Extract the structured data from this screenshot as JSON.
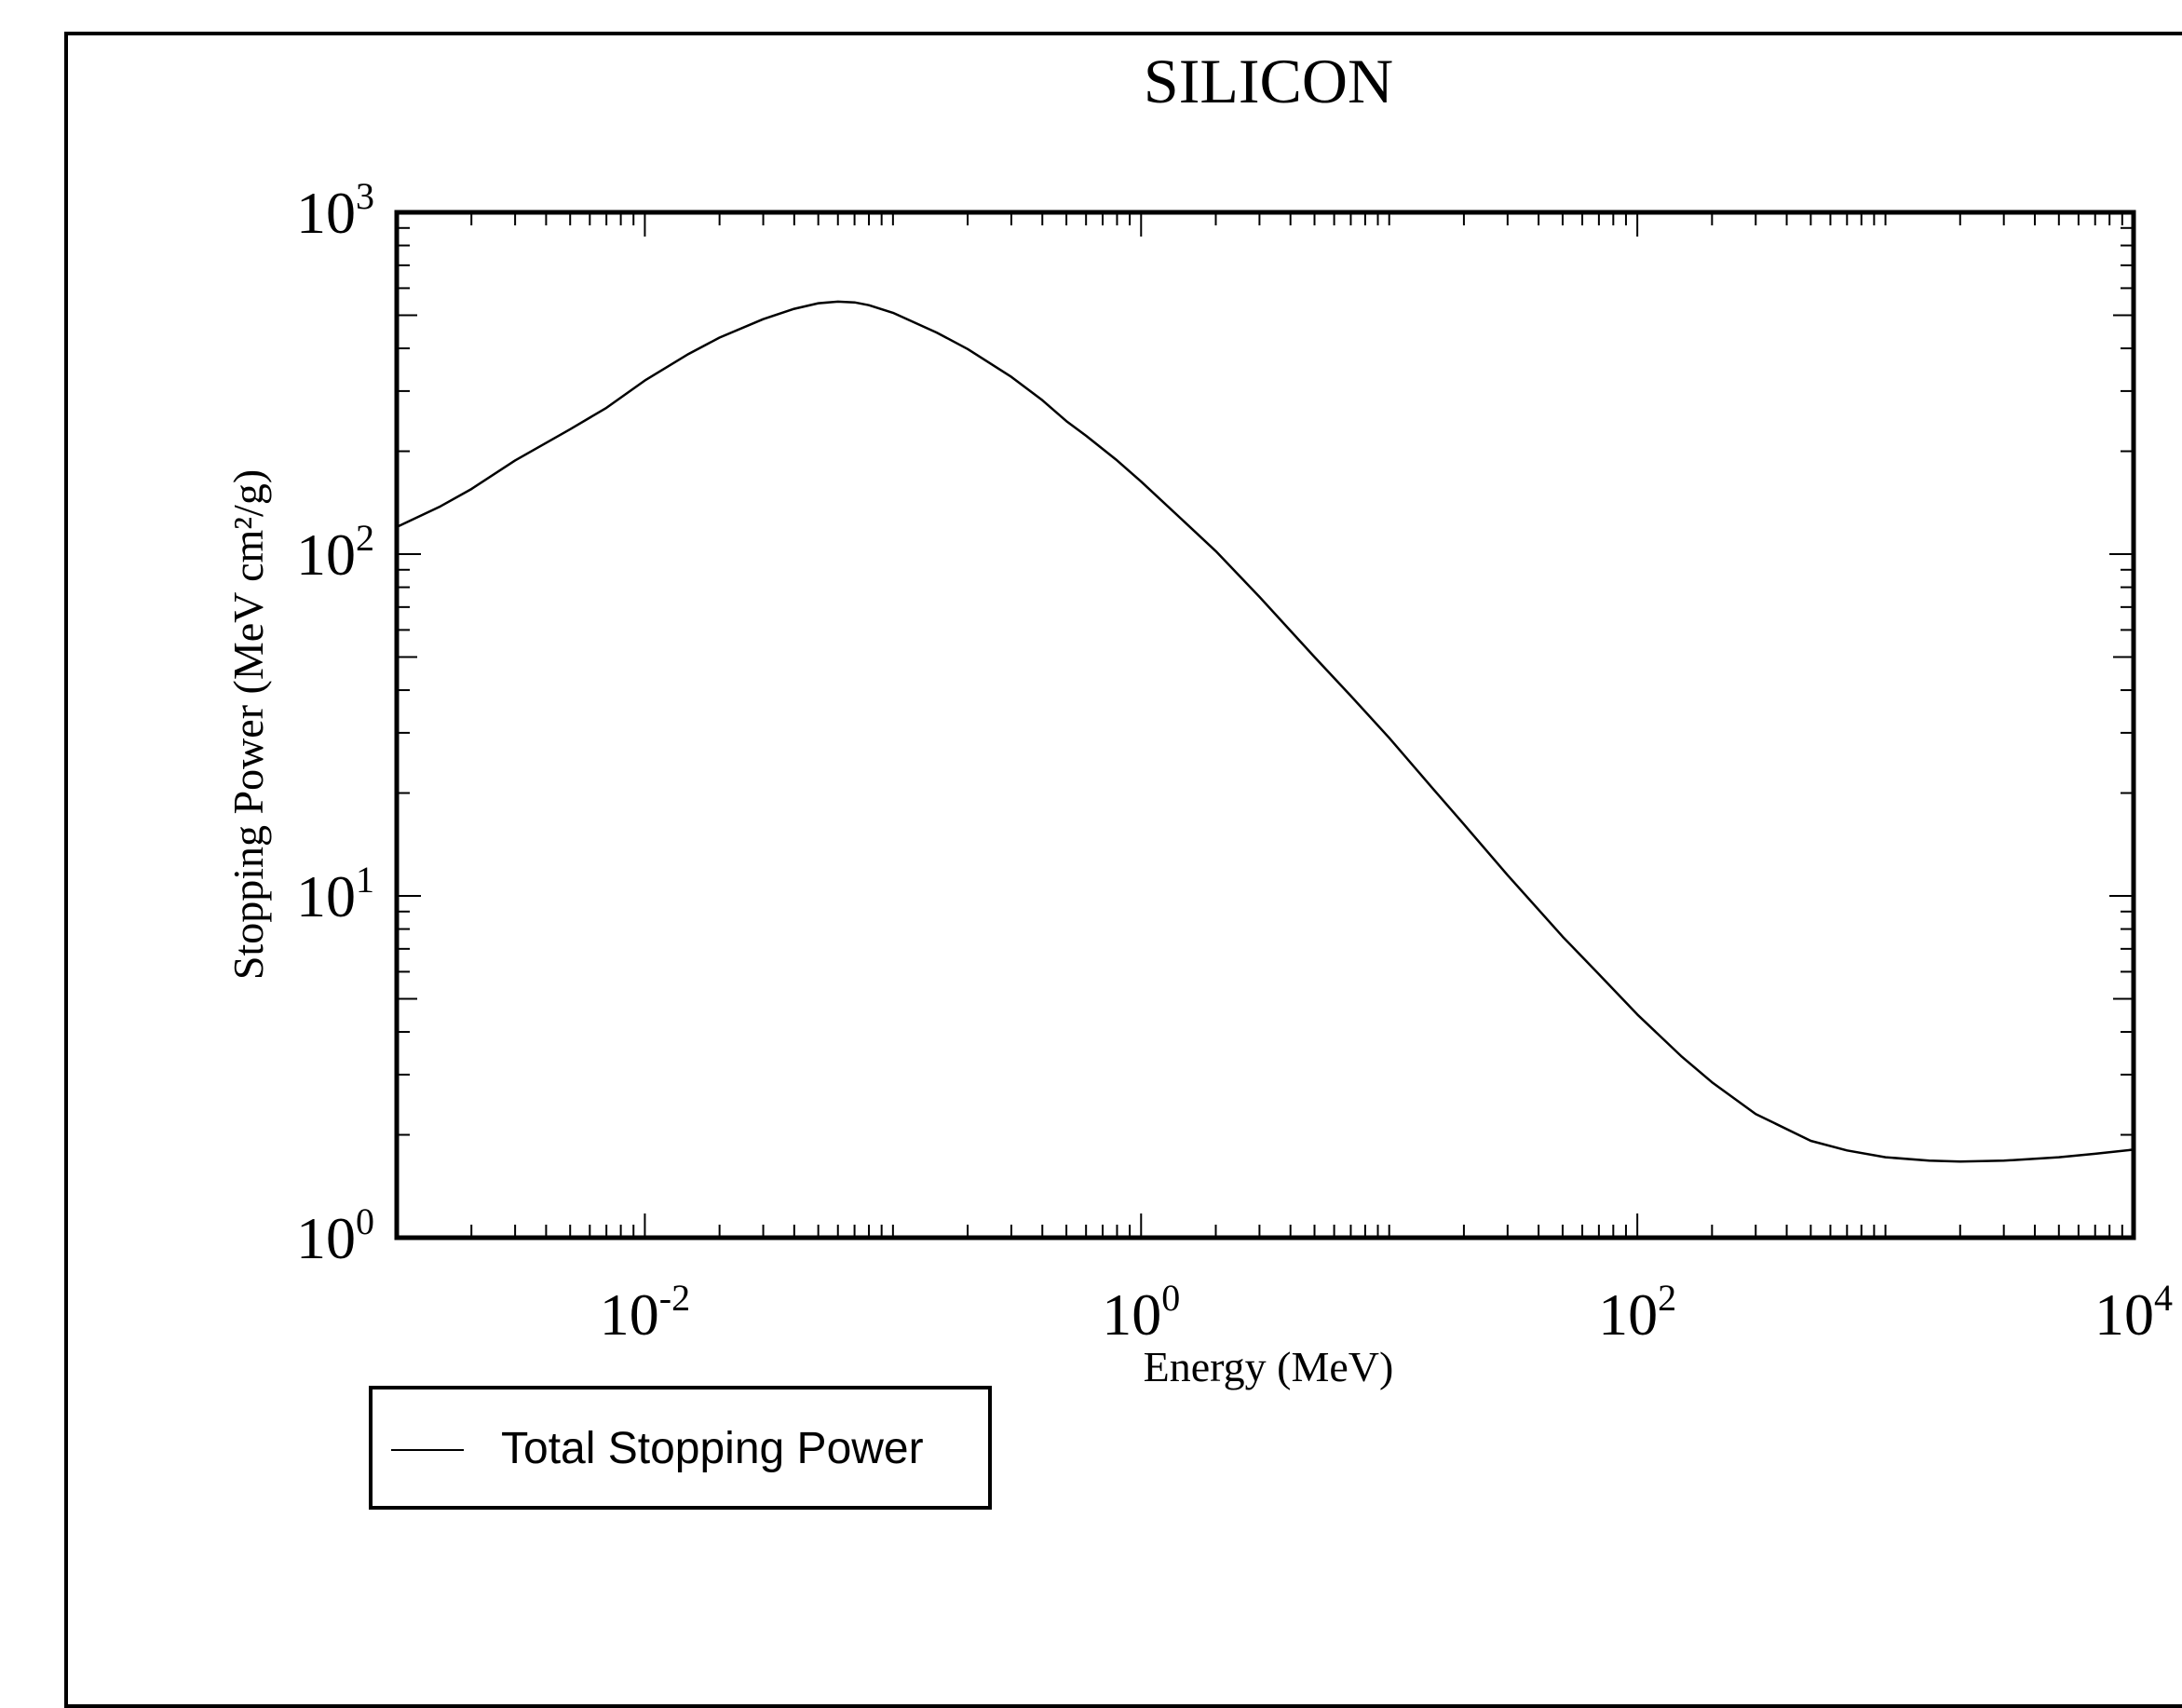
{
  "chart_data": {
    "type": "line",
    "title": "SILICON",
    "xlabel": "Energy (MeV)",
    "ylabel": "Stopping Power (MeV cm²/g)",
    "x_scale": "log",
    "y_scale": "log",
    "xlim": [
      0.001,
      10000
    ],
    "ylim": [
      1,
      1000
    ],
    "x_ticks": [
      {
        "value": 0.01,
        "base": "10",
        "exp": "-2"
      },
      {
        "value": 1,
        "base": "10",
        "exp": "0"
      },
      {
        "value": 100,
        "base": "10",
        "exp": "2"
      },
      {
        "value": 10000,
        "base": "10",
        "exp": "4"
      }
    ],
    "y_ticks": [
      {
        "value": 1,
        "base": "10",
        "exp": "0"
      },
      {
        "value": 10,
        "base": "10",
        "exp": "1"
      },
      {
        "value": 100,
        "base": "10",
        "exp": "2"
      },
      {
        "value": 1000,
        "base": "10",
        "exp": "3"
      }
    ],
    "grid": false,
    "legend_position": "bottom-left, outside plot",
    "series": [
      {
        "name": "Total Stopping Power",
        "color": "#000000",
        "x": [
          0.001,
          0.0015,
          0.002,
          0.003,
          0.005,
          0.007,
          0.01,
          0.015,
          0.02,
          0.03,
          0.04,
          0.05,
          0.06,
          0.07,
          0.08,
          0.1,
          0.15,
          0.2,
          0.3,
          0.4,
          0.5,
          0.6,
          0.8,
          1,
          1.5,
          2,
          3,
          5,
          7,
          10,
          15,
          20,
          30,
          50,
          70,
          100,
          150,
          200,
          300,
          500,
          700,
          1000,
          1500,
          2000,
          3000,
          5000,
          7000,
          10000
        ],
        "y": [
          120,
          138,
          155,
          188,
          232,
          268,
          322,
          385,
          430,
          487,
          522,
          542,
          548,
          545,
          535,
          508,
          445,
          398,
          330,
          282,
          245,
          222,
          188,
          163,
          124,
          102,
          75,
          50,
          38.5,
          29,
          20.6,
          16.2,
          11.5,
          7.6,
          5.9,
          4.5,
          3.4,
          2.85,
          2.3,
          1.92,
          1.8,
          1.72,
          1.68,
          1.67,
          1.68,
          1.72,
          1.76,
          1.81
        ]
      }
    ]
  }
}
